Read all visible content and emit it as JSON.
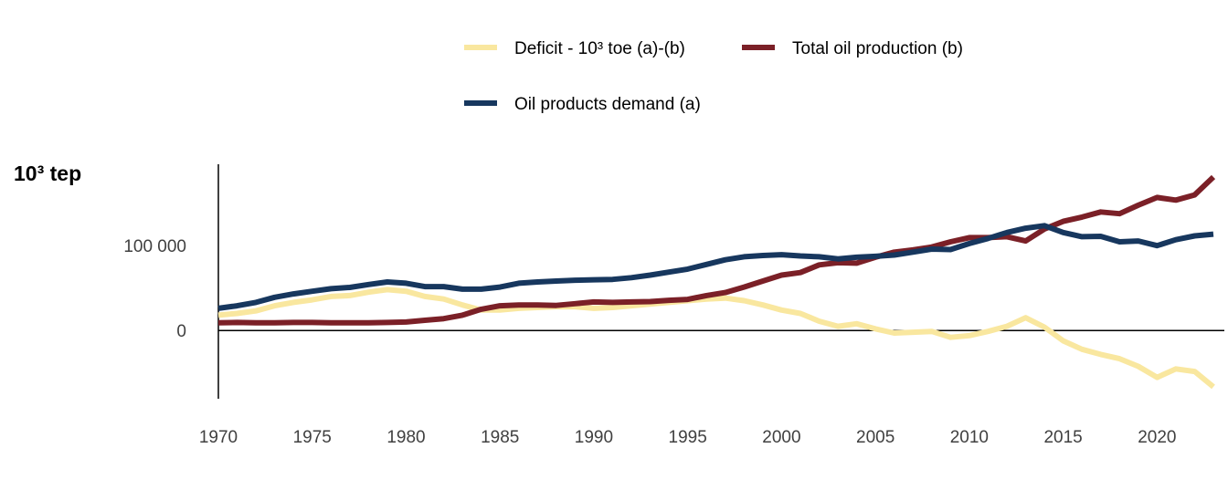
{
  "chart_data": {
    "type": "line",
    "ylabel": "10³ tep",
    "xlim": [
      1970,
      2023
    ],
    "ylim": [
      -80000,
      195000
    ],
    "ytick_values": [
      0,
      100000
    ],
    "ytick_labels": [
      "0",
      "100 000"
    ],
    "xtick_values": [
      1970,
      1975,
      1980,
      1985,
      1990,
      1995,
      2000,
      2005,
      2010,
      2015,
      2020
    ],
    "xtick_labels": [
      "1970",
      "1975",
      "1980",
      "1985",
      "1990",
      "1995",
      "2000",
      "2005",
      "2010",
      "2015",
      "2020"
    ],
    "grid": false,
    "legend_position": "top",
    "x": [
      1970,
      1971,
      1972,
      1973,
      1974,
      1975,
      1976,
      1977,
      1978,
      1979,
      1980,
      1981,
      1982,
      1983,
      1984,
      1985,
      1986,
      1987,
      1988,
      1989,
      1990,
      1991,
      1992,
      1993,
      1994,
      1995,
      1996,
      1997,
      1998,
      1999,
      2000,
      2001,
      2002,
      2003,
      2004,
      2005,
      2006,
      2007,
      2008,
      2009,
      2010,
      2011,
      2012,
      2013,
      2014,
      2015,
      2016,
      2017,
      2018,
      2019,
      2020,
      2021,
      2022,
      2023
    ],
    "series": [
      {
        "name": "Deficit - 10³ toe (a)-(b)",
        "color": "#f9e79f",
        "values": [
          18000,
          20000,
          23000,
          29000,
          33000,
          36000,
          40000,
          41000,
          45000,
          48000,
          46000,
          40000,
          37000,
          30000,
          24000,
          24000,
          26000,
          27000,
          28000,
          28000,
          26000,
          27000,
          29000,
          31000,
          33000,
          35000,
          37000,
          38000,
          35000,
          30000,
          24000,
          20000,
          11000,
          5000,
          8000,
          2000,
          -3000,
          -2000,
          -1000,
          -8000,
          -6000,
          -1000,
          5000,
          15000,
          4000,
          -12000,
          -22000,
          -28000,
          -33000,
          -42000,
          -55000,
          -45000,
          -48000,
          -66000
        ]
      },
      {
        "name": "Total oil production (b)",
        "color": "#7b2027",
        "values": [
          9000,
          9500,
          9000,
          9000,
          9500,
          9500,
          9000,
          9000,
          9000,
          9500,
          10000,
          12000,
          14000,
          18000,
          25000,
          29000,
          30000,
          30000,
          29500,
          31500,
          33500,
          33000,
          33500,
          34000,
          35500,
          36500,
          41000,
          44500,
          51000,
          58000,
          65000,
          68000,
          77000,
          79500,
          79000,
          86000,
          92000,
          94500,
          98000,
          104000,
          109000,
          109000,
          110000,
          105000,
          119000,
          128000,
          133000,
          139000,
          137000,
          147000,
          156000,
          153000,
          159000,
          180000
        ]
      },
      {
        "name": "Oil products demand (a)",
        "color": "#17375e",
        "values": [
          26000,
          29000,
          33000,
          39000,
          43000,
          46000,
          49000,
          50500,
          54000,
          57000,
          55500,
          51500,
          51500,
          48500,
          48500,
          51000,
          55500,
          57000,
          58000,
          59000,
          59500,
          60000,
          62000,
          65000,
          68500,
          72000,
          77500,
          83000,
          86500,
          88000,
          89000,
          87500,
          86500,
          84000,
          86000,
          87000,
          88500,
          92000,
          95500,
          95000,
          102000,
          108000,
          115000,
          120000,
          123000,
          115000,
          110000,
          110500,
          104000,
          105000,
          99500,
          106500,
          111000,
          113000
        ]
      }
    ]
  }
}
